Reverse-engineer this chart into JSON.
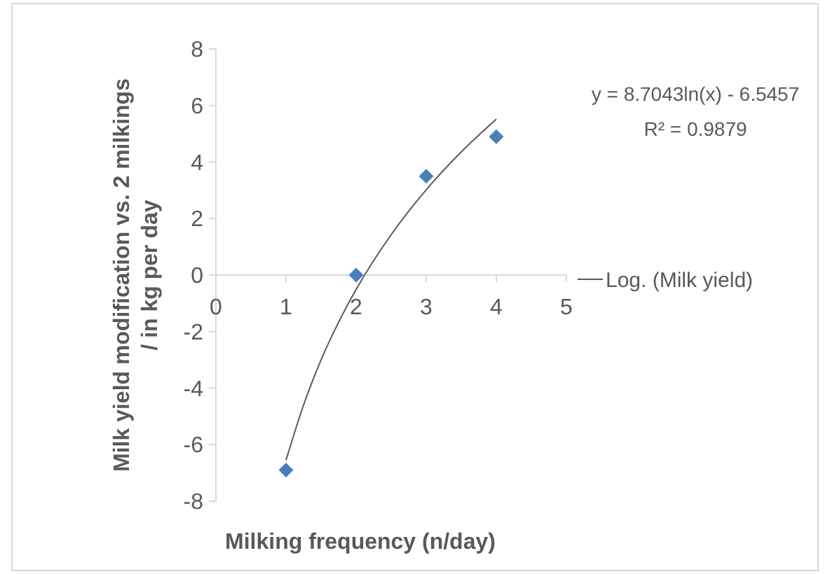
{
  "chart_data": {
    "type": "scatter",
    "xlabel": "Milking frequency (n/day)",
    "ylabel": "Milk yield modification vs. 2 milkings / in kg per day",
    "xlim": [
      0,
      5
    ],
    "xticks": [
      0,
      1,
      2,
      3,
      4,
      5
    ],
    "ylim": [
      -8,
      8
    ],
    "yticks": [
      -8,
      -6,
      -4,
      -2,
      0,
      2,
      4,
      6,
      8
    ],
    "grid": false,
    "legend": "right",
    "marker": "diamond",
    "series": [
      {
        "color": "#4a7ebb",
        "x": [
          1,
          2,
          3,
          4
        ],
        "values": [
          -6.9,
          0,
          3.5,
          4.9
        ]
      },
      {
        "type": "line",
        "name": "Log. (Milk yield)",
        "color": "#595959",
        "marker": "none",
        "x": [
          1,
          1.25,
          1.5,
          1.75,
          2,
          2.5,
          3,
          3.5,
          4
        ],
        "values": [
          -6.55,
          -4.6,
          -3.0,
          -1.67,
          -0.51,
          1.43,
          3.02,
          4.36,
          5.52
        ]
      }
    ],
    "annotations": [
      "y = 8.7043ln(x) - 6.5457",
      "R² = 0.9879"
    ]
  }
}
